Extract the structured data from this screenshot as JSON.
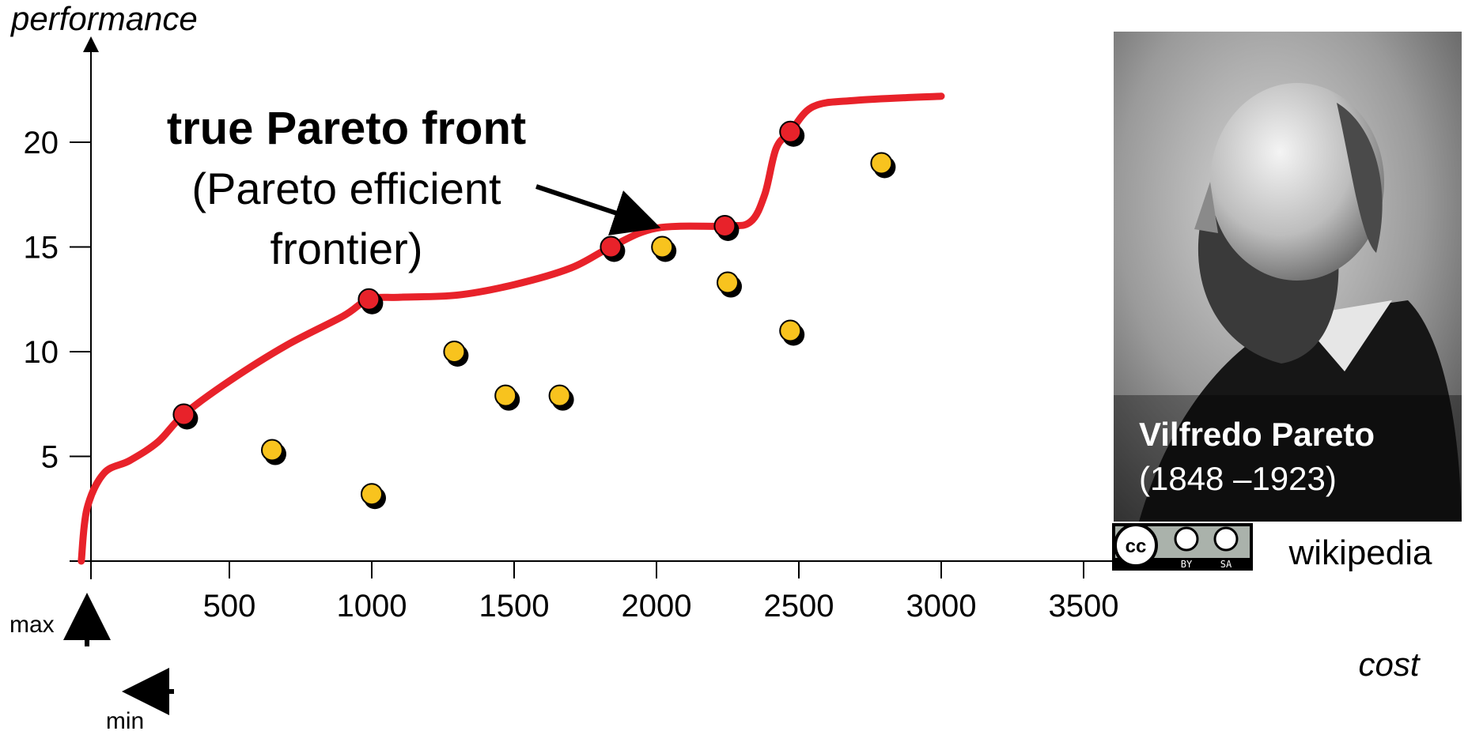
{
  "chart_data": {
    "type": "scatter",
    "xlabel": "cost",
    "ylabel": "performance",
    "xlim": [
      -80,
      3700
    ],
    "ylim": [
      0,
      26
    ],
    "x_ticks": [
      500,
      1000,
      1500,
      2000,
      2500,
      3000,
      3500
    ],
    "y_ticks": [
      5,
      10,
      15,
      20
    ],
    "grid": false,
    "series": [
      {
        "role": "pareto-optimal",
        "color": "#e8222a",
        "points": [
          [
            340,
            7.0
          ],
          [
            990,
            12.5
          ],
          [
            1840,
            15.0
          ],
          [
            2240,
            16.0
          ],
          [
            2470,
            20.5
          ]
        ]
      },
      {
        "role": "dominated",
        "color": "#f8c31e",
        "points": [
          [
            650,
            5.3
          ],
          [
            1000,
            3.2
          ],
          [
            1290,
            10.0
          ],
          [
            1470,
            7.9
          ],
          [
            1660,
            7.9
          ],
          [
            2020,
            15.0
          ],
          [
            2250,
            13.3
          ],
          [
            2470,
            11.0
          ],
          [
            2790,
            19.0
          ]
        ]
      }
    ],
    "front_curve": {
      "color": "#e8222a",
      "points": [
        [
          -20,
          0
        ],
        [
          0,
          2.5
        ],
        [
          60,
          4.2
        ],
        [
          150,
          4.8
        ],
        [
          250,
          5.7
        ],
        [
          340,
          7.0
        ],
        [
          500,
          8.6
        ],
        [
          700,
          10.3
        ],
        [
          900,
          11.7
        ],
        [
          990,
          12.5
        ],
        [
          1100,
          12.6
        ],
        [
          1300,
          12.7
        ],
        [
          1500,
          13.2
        ],
        [
          1700,
          14.0
        ],
        [
          1840,
          15.0
        ],
        [
          2000,
          15.9
        ],
        [
          2240,
          16.0
        ],
        [
          2330,
          16.2
        ],
        [
          2380,
          17.5
        ],
        [
          2420,
          19.7
        ],
        [
          2470,
          20.5
        ],
        [
          2550,
          21.7
        ],
        [
          2700,
          22.0
        ],
        [
          3000,
          22.2
        ]
      ]
    },
    "annotations": {
      "title": "true Pareto front",
      "subtitle_line1": "(Pareto efficient",
      "subtitle_line2": "frontier)",
      "arrow_target": [
        2000,
        15.9
      ]
    },
    "direction_labels": {
      "max": "max",
      "min": "min"
    }
  },
  "portrait": {
    "name": "Vilfredo Pareto",
    "years": "(1848 –1923)",
    "license_badge": "cc-by-sa",
    "license_by": "BY",
    "license_sa": "SA",
    "credit": "wikipedia"
  }
}
